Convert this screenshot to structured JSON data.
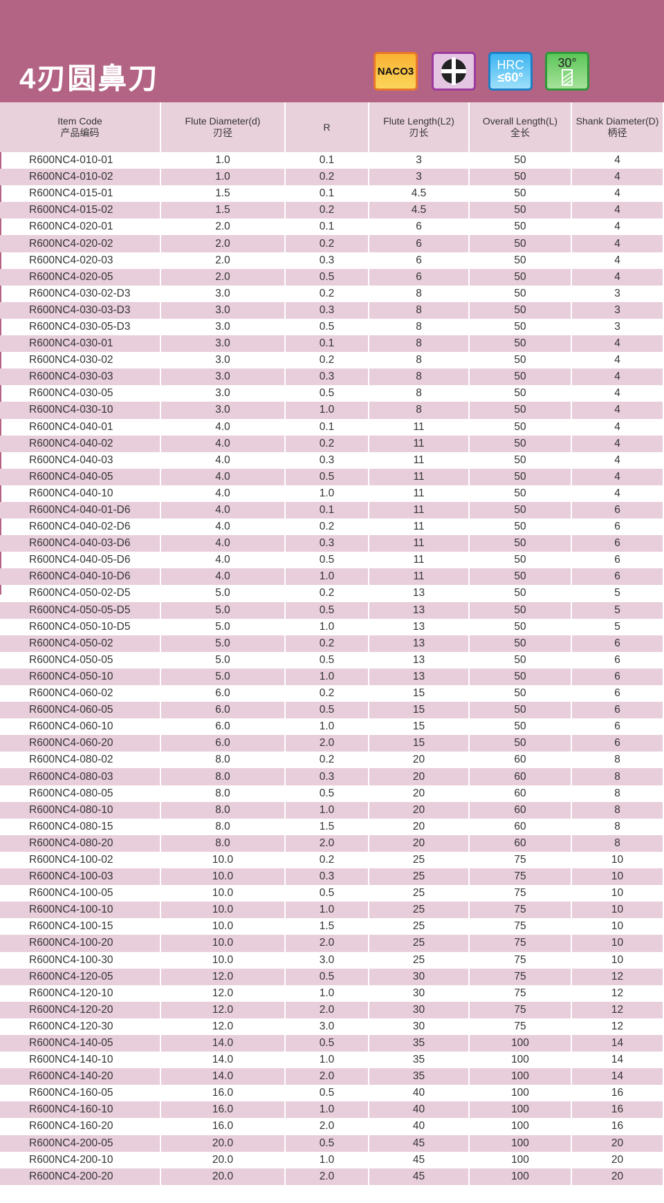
{
  "title": "4刃圆鼻刀",
  "badges": {
    "material": "NACO3",
    "hrc_top": "HRC",
    "hrc_bottom": "≤60°",
    "helix": "30°"
  },
  "headers": [
    {
      "en": "Item Code",
      "zh": "产品编码"
    },
    {
      "en": "Flute  Diameter(d)",
      "zh": "刃径"
    },
    {
      "en": "R",
      "zh": ""
    },
    {
      "en": "Flute Length(L2)",
      "zh": "刃长"
    },
    {
      "en": "Overall Length(L)",
      "zh": "全长"
    },
    {
      "en": "Shank Diameter(D)",
      "zh": "柄径"
    }
  ],
  "rows": [
    [
      "R600NC4-010-01",
      "1.0",
      "0.1",
      "3",
      "50",
      "4"
    ],
    [
      "R600NC4-010-02",
      "1.0",
      "0.2",
      "3",
      "50",
      "4"
    ],
    [
      "R600NC4-015-01",
      "1.5",
      "0.1",
      "4.5",
      "50",
      "4"
    ],
    [
      "R600NC4-015-02",
      "1.5",
      "0.2",
      "4.5",
      "50",
      "4"
    ],
    [
      "R600NC4-020-01",
      "2.0",
      "0.1",
      "6",
      "50",
      "4"
    ],
    [
      "R600NC4-020-02",
      "2.0",
      "0.2",
      "6",
      "50",
      "4"
    ],
    [
      "R600NC4-020-03",
      "2.0",
      "0.3",
      "6",
      "50",
      "4"
    ],
    [
      "R600NC4-020-05",
      "2.0",
      "0.5",
      "6",
      "50",
      "4"
    ],
    [
      "R600NC4-030-02-D3",
      "3.0",
      "0.2",
      "8",
      "50",
      "3"
    ],
    [
      "R600NC4-030-03-D3",
      "3.0",
      "0.3",
      "8",
      "50",
      "3"
    ],
    [
      "R600NC4-030-05-D3",
      "3.0",
      "0.5",
      "8",
      "50",
      "3"
    ],
    [
      "R600NC4-030-01",
      "3.0",
      "0.1",
      "8",
      "50",
      "4"
    ],
    [
      "R600NC4-030-02",
      "3.0",
      "0.2",
      "8",
      "50",
      "4"
    ],
    [
      "R600NC4-030-03",
      "3.0",
      "0.3",
      "8",
      "50",
      "4"
    ],
    [
      "R600NC4-030-05",
      "3.0",
      "0.5",
      "8",
      "50",
      "4"
    ],
    [
      "R600NC4-030-10",
      "3.0",
      "1.0",
      "8",
      "50",
      "4"
    ],
    [
      "R600NC4-040-01",
      "4.0",
      "0.1",
      "11",
      "50",
      "4"
    ],
    [
      "R600NC4-040-02",
      "4.0",
      "0.2",
      "11",
      "50",
      "4"
    ],
    [
      "R600NC4-040-03",
      "4.0",
      "0.3",
      "11",
      "50",
      "4"
    ],
    [
      "R600NC4-040-05",
      "4.0",
      "0.5",
      "11",
      "50",
      "4"
    ],
    [
      "R600NC4-040-10",
      "4.0",
      "1.0",
      "11",
      "50",
      "4"
    ],
    [
      "R600NC4-040-01-D6",
      "4.0",
      "0.1",
      "11",
      "50",
      "6"
    ],
    [
      "R600NC4-040-02-D6",
      "4.0",
      "0.2",
      "11",
      "50",
      "6"
    ],
    [
      "R600NC4-040-03-D6",
      "4.0",
      "0.3",
      "11",
      "50",
      "6"
    ],
    [
      "R600NC4-040-05-D6",
      "4.0",
      "0.5",
      "11",
      "50",
      "6"
    ],
    [
      "R600NC4-040-10-D6",
      "4.0",
      "1.0",
      "11",
      "50",
      "6"
    ],
    [
      "R600NC4-050-02-D5",
      "5.0",
      "0.2",
      "13",
      "50",
      "5"
    ],
    [
      "R600NC4-050-05-D5",
      "5.0",
      "0.5",
      "13",
      "50",
      "5"
    ],
    [
      "R600NC4-050-10-D5",
      "5.0",
      "1.0",
      "13",
      "50",
      "5"
    ],
    [
      "R600NC4-050-02",
      "5.0",
      "0.2",
      "13",
      "50",
      "6"
    ],
    [
      "R600NC4-050-05",
      "5.0",
      "0.5",
      "13",
      "50",
      "6"
    ],
    [
      "R600NC4-050-10",
      "5.0",
      "1.0",
      "13",
      "50",
      "6"
    ],
    [
      "R600NC4-060-02",
      "6.0",
      "0.2",
      "15",
      "50",
      "6"
    ],
    [
      "R600NC4-060-05",
      "6.0",
      "0.5",
      "15",
      "50",
      "6"
    ],
    [
      "R600NC4-060-10",
      "6.0",
      "1.0",
      "15",
      "50",
      "6"
    ],
    [
      "R600NC4-060-20",
      "6.0",
      "2.0",
      "15",
      "50",
      "6"
    ],
    [
      "R600NC4-080-02",
      "8.0",
      "0.2",
      "20",
      "60",
      "8"
    ],
    [
      "R600NC4-080-03",
      "8.0",
      "0.3",
      "20",
      "60",
      "8"
    ],
    [
      "R600NC4-080-05",
      "8.0",
      "0.5",
      "20",
      "60",
      "8"
    ],
    [
      "R600NC4-080-10",
      "8.0",
      "1.0",
      "20",
      "60",
      "8"
    ],
    [
      "R600NC4-080-15",
      "8.0",
      "1.5",
      "20",
      "60",
      "8"
    ],
    [
      "R600NC4-080-20",
      "8.0",
      "2.0",
      "20",
      "60",
      "8"
    ],
    [
      "R600NC4-100-02",
      "10.0",
      "0.2",
      "25",
      "75",
      "10"
    ],
    [
      "R600NC4-100-03",
      "10.0",
      "0.3",
      "25",
      "75",
      "10"
    ],
    [
      "R600NC4-100-05",
      "10.0",
      "0.5",
      "25",
      "75",
      "10"
    ],
    [
      "R600NC4-100-10",
      "10.0",
      "1.0",
      "25",
      "75",
      "10"
    ],
    [
      "R600NC4-100-15",
      "10.0",
      "1.5",
      "25",
      "75",
      "10"
    ],
    [
      "R600NC4-100-20",
      "10.0",
      "2.0",
      "25",
      "75",
      "10"
    ],
    [
      "R600NC4-100-30",
      "10.0",
      "3.0",
      "25",
      "75",
      "10"
    ],
    [
      "R600NC4-120-05",
      "12.0",
      "0.5",
      "30",
      "75",
      "12"
    ],
    [
      "R600NC4-120-10",
      "12.0",
      "1.0",
      "30",
      "75",
      "12"
    ],
    [
      "R600NC4-120-20",
      "12.0",
      "2.0",
      "30",
      "75",
      "12"
    ],
    [
      "R600NC4-120-30",
      "12.0",
      "3.0",
      "30",
      "75",
      "12"
    ],
    [
      "R600NC4-140-05",
      "14.0",
      "0.5",
      "35",
      "100",
      "14"
    ],
    [
      "R600NC4-140-10",
      "14.0",
      "1.0",
      "35",
      "100",
      "14"
    ],
    [
      "R600NC4-140-20",
      "14.0",
      "2.0",
      "35",
      "100",
      "14"
    ],
    [
      "R600NC4-160-05",
      "16.0",
      "0.5",
      "40",
      "100",
      "16"
    ],
    [
      "R600NC4-160-10",
      "16.0",
      "1.0",
      "40",
      "100",
      "16"
    ],
    [
      "R600NC4-160-20",
      "16.0",
      "2.0",
      "40",
      "100",
      "16"
    ],
    [
      "R600NC4-200-05",
      "20.0",
      "0.5",
      "45",
      "100",
      "20"
    ],
    [
      "R600NC4-200-10",
      "20.0",
      "1.0",
      "45",
      "100",
      "20"
    ],
    [
      "R600NC4-200-20",
      "20.0",
      "2.0",
      "45",
      "100",
      "20"
    ]
  ]
}
